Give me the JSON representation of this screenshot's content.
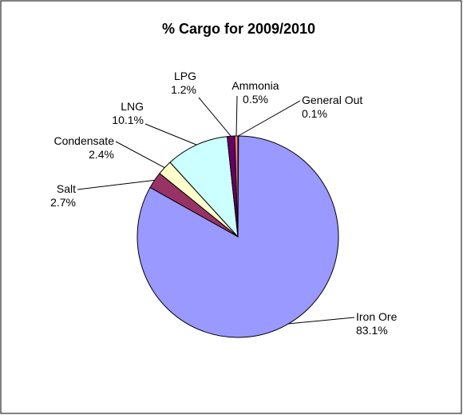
{
  "chart_data": {
    "type": "pie",
    "title": "% Cargo for 2009/2010",
    "slices": [
      {
        "name": "General Out",
        "value": 0.1,
        "label": "0.1%",
        "color": "#ffcc99"
      },
      {
        "name": "Iron Ore",
        "value": 83.1,
        "label": "83.1%",
        "color": "#9999ff"
      },
      {
        "name": "Salt",
        "value": 2.7,
        "label": "2.7%",
        "color": "#993366"
      },
      {
        "name": "Condensate",
        "value": 2.4,
        "label": "2.4%",
        "color": "#ffffcc"
      },
      {
        "name": "LNG",
        "value": 10.1,
        "label": "10.1%",
        "color": "#ccffff"
      },
      {
        "name": "LPG",
        "value": 1.2,
        "label": "1.2%",
        "color": "#660066"
      },
      {
        "name": "Ammonia",
        "value": 0.5,
        "label": "0.5%",
        "color": "#ff8080"
      }
    ],
    "legend": "none",
    "border_color": "#000000"
  }
}
